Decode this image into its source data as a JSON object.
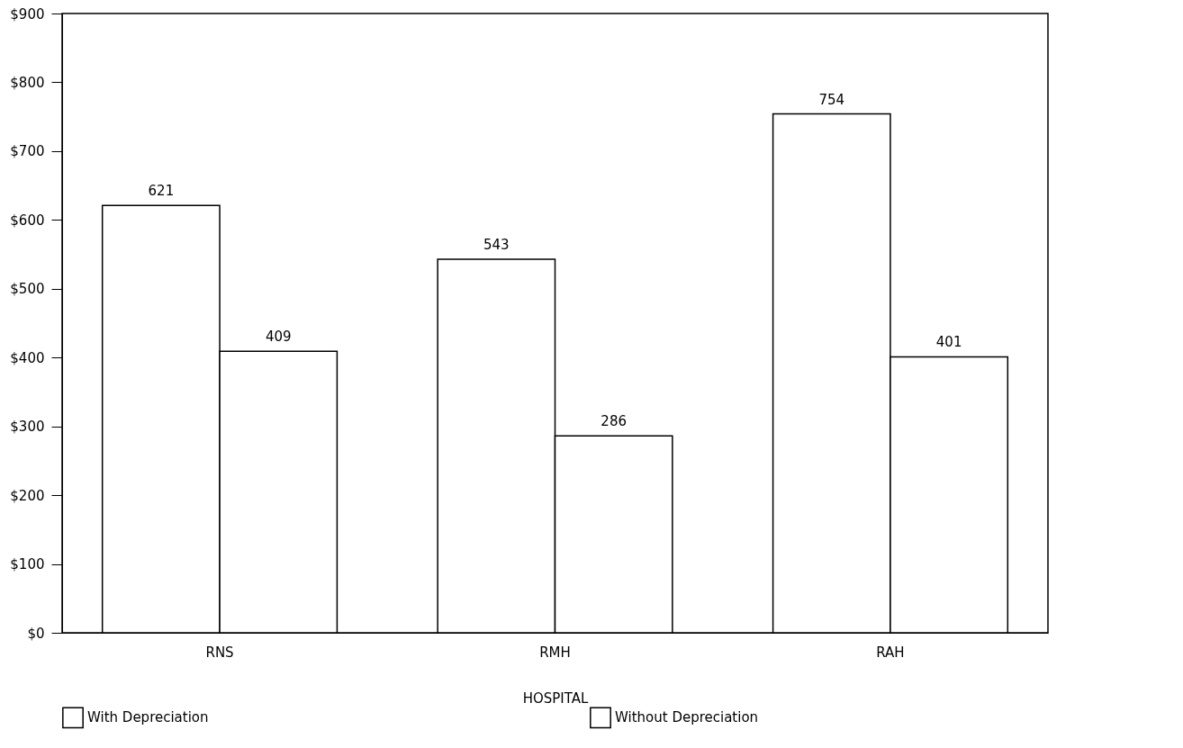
{
  "chart_data": {
    "type": "bar",
    "xlabel": "HOSPITAL",
    "categories": [
      "RNS",
      "RMH",
      "RAH"
    ],
    "series": [
      {
        "name": "With Depreciation",
        "color": "#ffffff",
        "values": [
          621,
          543,
          754
        ]
      },
      {
        "name": "Without Depreciation",
        "color": "#ffffff",
        "values": [
          409,
          286,
          401
        ]
      }
    ],
    "ylim": [
      0,
      900
    ],
    "yticks": [
      {
        "value": 0,
        "label": "$0"
      },
      {
        "value": 100,
        "label": "$100"
      },
      {
        "value": 200,
        "label": "$200"
      },
      {
        "value": 300,
        "label": "$300"
      },
      {
        "value": 400,
        "label": "$400"
      },
      {
        "value": 500,
        "label": "$500"
      },
      {
        "value": 600,
        "label": "$600"
      },
      {
        "value": 700,
        "label": "$700"
      },
      {
        "value": 800,
        "label": "$800"
      },
      {
        "value": 900,
        "label": "$900"
      }
    ],
    "data_labels": true,
    "grid": false,
    "legend": "bottom"
  }
}
